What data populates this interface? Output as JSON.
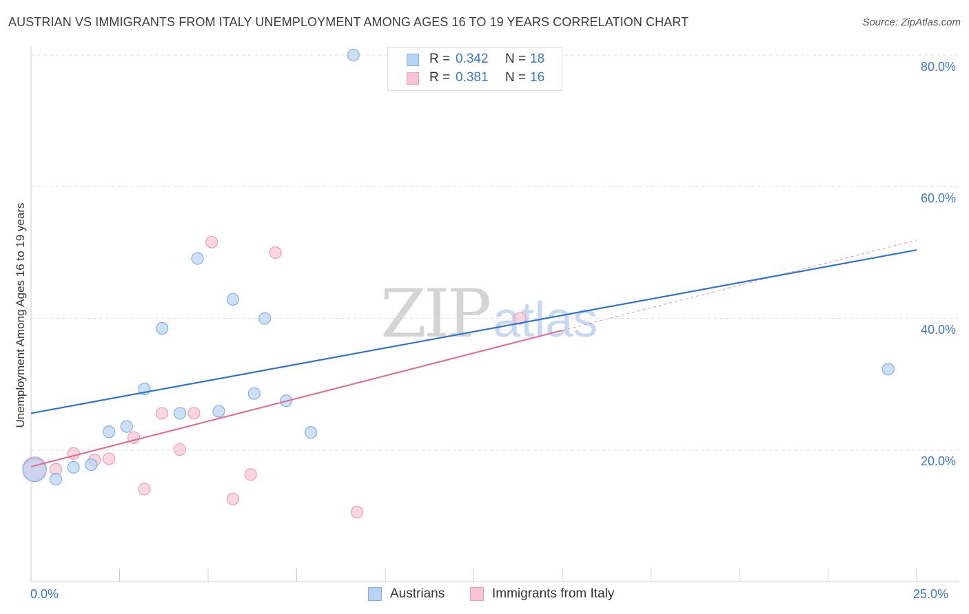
{
  "title": "AUSTRIAN VS IMMIGRANTS FROM ITALY UNEMPLOYMENT AMONG AGES 16 TO 19 YEARS CORRELATION CHART",
  "source": "Source: ZipAtlas.com",
  "watermark": {
    "zip": "ZIP",
    "atlas": "atlas"
  },
  "legend": {
    "rows": [
      {
        "r_label": "R = ",
        "r_value": "0.342",
        "n_label": "N = ",
        "n_value": "18"
      },
      {
        "r_label": "R = ",
        "r_value": "0.381",
        "n_label": "N = ",
        "n_value": "16"
      }
    ]
  },
  "bottom_legend": [
    {
      "label": "Austrians"
    },
    {
      "label": "Immigrants from Italy"
    }
  ],
  "colors": {
    "blue_fill": "#b8d3f4",
    "blue_stroke": "#7faee6",
    "blue_line": "#2f74d0",
    "pink_fill": "#f8c4d4",
    "pink_stroke": "#ef9cb6",
    "pink_line": "#e0709a",
    "grid": "#dddddd",
    "tick_text": "#3a78c9"
  },
  "chart_data": {
    "type": "scatter",
    "title": "AUSTRIAN VS IMMIGRANTS FROM ITALY UNEMPLOYMENT AMONG AGES 16 TO 19 YEARS CORRELATION CHART",
    "xlabel": "",
    "ylabel": "Unemployment Among Ages 16 to 19 years",
    "xlim": [
      0,
      25
    ],
    "ylim": [
      0,
      82
    ],
    "x_tick_labels": {
      "min": "0.0%",
      "max": "25.0%"
    },
    "y_ticks": [
      {
        "value": 20,
        "label": "20.0%"
      },
      {
        "value": 40,
        "label": "40.0%"
      },
      {
        "value": 60,
        "label": "60.0%"
      },
      {
        "value": 80,
        "label": "80.0%"
      }
    ],
    "grid": true,
    "series": [
      {
        "name": "Austrians",
        "R": 0.342,
        "N": 18,
        "points": [
          {
            "x": 0.1,
            "y": 17.0,
            "big": true
          },
          {
            "x": 0.7,
            "y": 15.6
          },
          {
            "x": 1.2,
            "y": 17.4
          },
          {
            "x": 1.7,
            "y": 17.8
          },
          {
            "x": 2.2,
            "y": 22.8
          },
          {
            "x": 2.7,
            "y": 23.6
          },
          {
            "x": 3.2,
            "y": 29.3
          },
          {
            "x": 3.7,
            "y": 38.5
          },
          {
            "x": 4.2,
            "y": 25.6
          },
          {
            "x": 4.7,
            "y": 49.1
          },
          {
            "x": 5.3,
            "y": 25.9
          },
          {
            "x": 5.7,
            "y": 42.9
          },
          {
            "x": 6.3,
            "y": 28.6
          },
          {
            "x": 6.6,
            "y": 40.0
          },
          {
            "x": 7.2,
            "y": 27.5
          },
          {
            "x": 7.9,
            "y": 22.7
          },
          {
            "x": 9.1,
            "y": 80.0
          },
          {
            "x": 24.2,
            "y": 32.3
          }
        ],
        "trend": {
          "x0": 0,
          "y0": 25.6,
          "x1": 25,
          "y1": 50.4
        }
      },
      {
        "name": "Immigrants from Italy",
        "R": 0.381,
        "N": 16,
        "points": [
          {
            "x": 0.1,
            "y": 17.2,
            "big": true
          },
          {
            "x": 0.7,
            "y": 17.1
          },
          {
            "x": 1.2,
            "y": 19.5
          },
          {
            "x": 1.8,
            "y": 18.5
          },
          {
            "x": 2.2,
            "y": 18.7
          },
          {
            "x": 2.9,
            "y": 21.9
          },
          {
            "x": 3.2,
            "y": 14.1
          },
          {
            "x": 3.7,
            "y": 25.6
          },
          {
            "x": 4.2,
            "y": 20.1
          },
          {
            "x": 4.6,
            "y": 25.6
          },
          {
            "x": 5.1,
            "y": 51.6
          },
          {
            "x": 5.7,
            "y": 12.6
          },
          {
            "x": 6.2,
            "y": 16.3
          },
          {
            "x": 6.9,
            "y": 50.0
          },
          {
            "x": 9.2,
            "y": 10.6
          },
          {
            "x": 13.8,
            "y": 40.0
          }
        ],
        "trend": {
          "x0": 0,
          "y0": 17.5,
          "x1": 15,
          "y1": 38.2
        },
        "trend_extension": {
          "x0": 15,
          "y0": 38.2,
          "x1": 25,
          "y1": 51.9
        }
      }
    ]
  }
}
